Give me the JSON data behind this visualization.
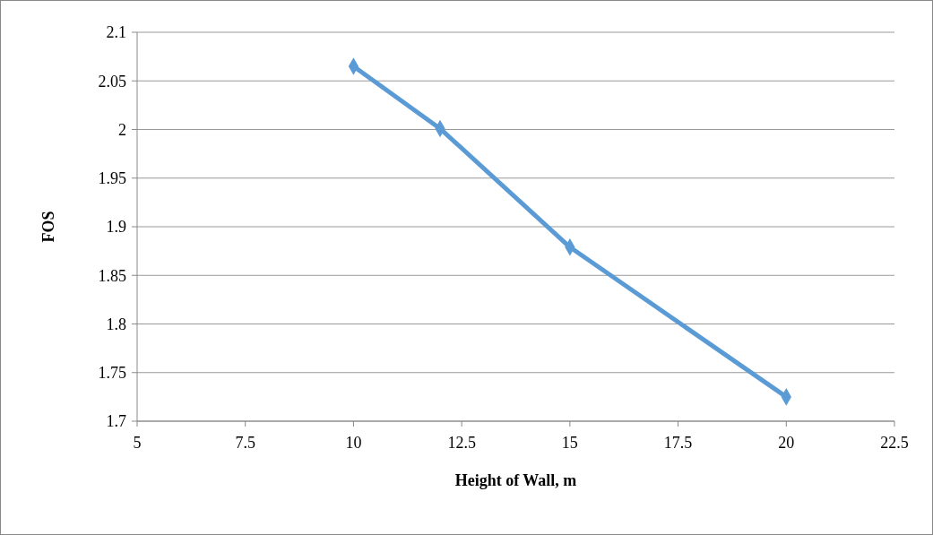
{
  "chart_data": {
    "type": "line",
    "xlabel": "Height of Wall, m",
    "ylabel": "FOS",
    "x": [
      10,
      12,
      15,
      20
    ],
    "series": [
      {
        "color": "#5b9bd5",
        "values": [
          2.065,
          2.001,
          1.879,
          1.725
        ]
      }
    ],
    "xlim": [
      5,
      22.5
    ],
    "xticks": [
      5,
      7.5,
      10,
      12.5,
      15,
      17.5,
      20,
      22.5
    ],
    "ylim": [
      1.7,
      2.1
    ],
    "yticks": [
      1.7,
      1.75,
      1.8,
      1.85,
      1.9,
      1.95,
      2,
      2.05,
      2.1
    ],
    "grid": "y",
    "marker": "diamond",
    "line_style": "solid"
  }
}
